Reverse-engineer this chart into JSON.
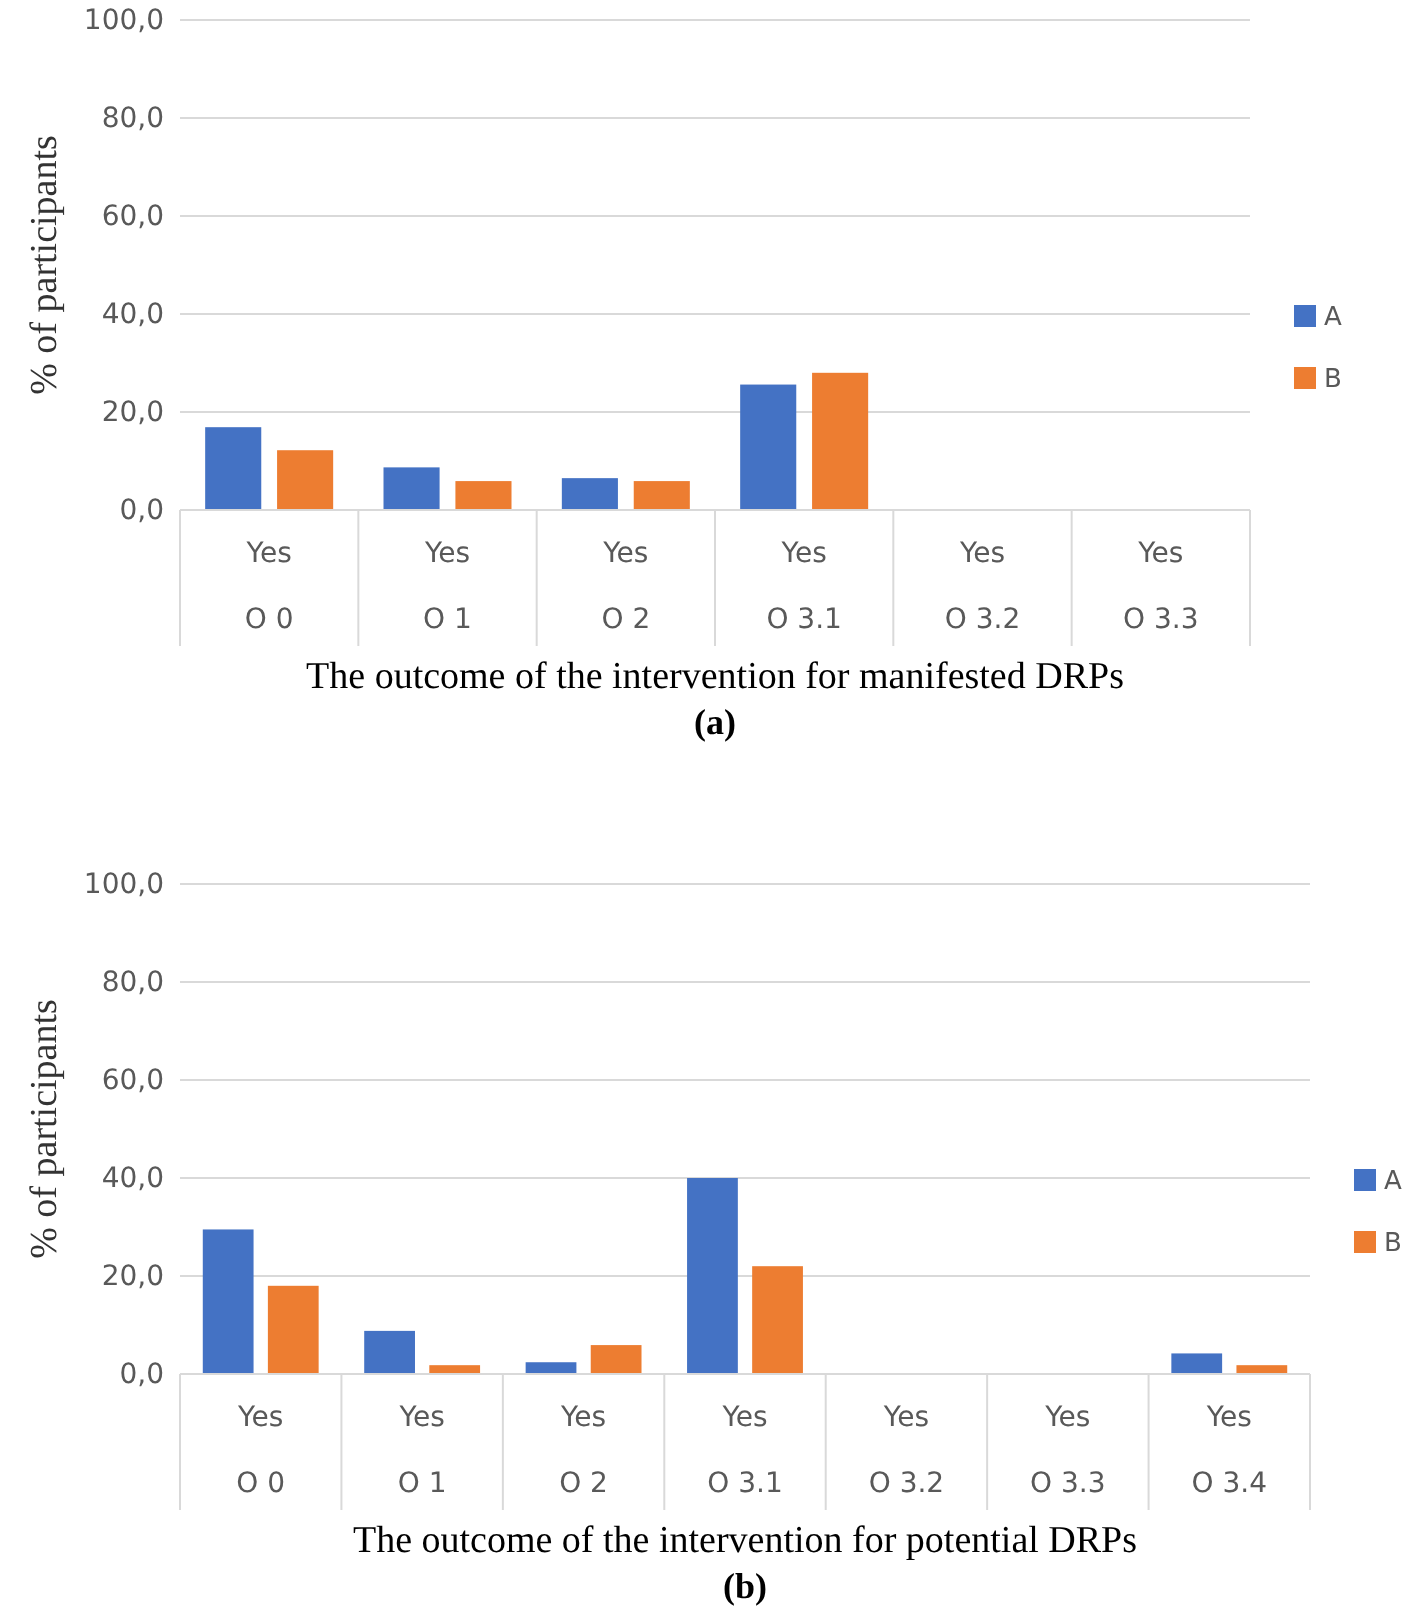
{
  "chart_data": [
    {
      "type": "bar",
      "categories": [
        "Yes\nO 0",
        "Yes\nO 1",
        "Yes\nO 2",
        "Yes\nO 3.1",
        "Yes\nO 3.2",
        "Yes\nO 3.3"
      ],
      "xlabel": "The outcome of the intervention for manifested DRPs",
      "ylabel": "% of participants",
      "annotations": [
        "(a)"
      ],
      "ylim": [
        0,
        100
      ],
      "yticks": [
        {
          "value": 0,
          "label": "0,0"
        },
        {
          "value": 20,
          "label": "20,0"
        },
        {
          "value": 40,
          "label": "40,0"
        },
        {
          "value": 60,
          "label": "60,0"
        },
        {
          "value": 80,
          "label": "80,0"
        },
        {
          "value": 100,
          "label": "100,0"
        }
      ],
      "grid": "y",
      "legend": "right",
      "series": [
        {
          "name": "A",
          "color": "#4472c4",
          "values": [
            16.9,
            8.7,
            6.5,
            25.6,
            0,
            0
          ]
        },
        {
          "name": "B",
          "color": "#ed7d31",
          "values": [
            12.2,
            5.9,
            5.9,
            28.0,
            0,
            0
          ]
        }
      ]
    },
    {
      "type": "bar",
      "categories": [
        "Yes\nO 0",
        "Yes\nO 1",
        "Yes\nO 2",
        "Yes\nO 3.1",
        "Yes\nO 3.2",
        "Yes\nO 3.3",
        "Yes\nO 3.4"
      ],
      "xlabel": "The outcome of the intervention for potential DRPs",
      "ylabel": "% of participants",
      "annotations": [
        "(b)"
      ],
      "ylim": [
        0,
        100
      ],
      "yticks": [
        {
          "value": 0,
          "label": "0,0"
        },
        {
          "value": 20,
          "label": "20,0"
        },
        {
          "value": 40,
          "label": "40,0"
        },
        {
          "value": 60,
          "label": "60,0"
        },
        {
          "value": 80,
          "label": "80,0"
        },
        {
          "value": 100,
          "label": "100,0"
        }
      ],
      "grid": "y",
      "legend": "right",
      "series": [
        {
          "name": "A",
          "color": "#4472c4",
          "values": [
            29.5,
            8.8,
            2.4,
            40.0,
            0,
            0,
            4.2
          ]
        },
        {
          "name": "B",
          "color": "#ed7d31",
          "values": [
            18.0,
            1.8,
            5.9,
            22.0,
            0,
            0,
            1.8
          ]
        }
      ]
    }
  ]
}
